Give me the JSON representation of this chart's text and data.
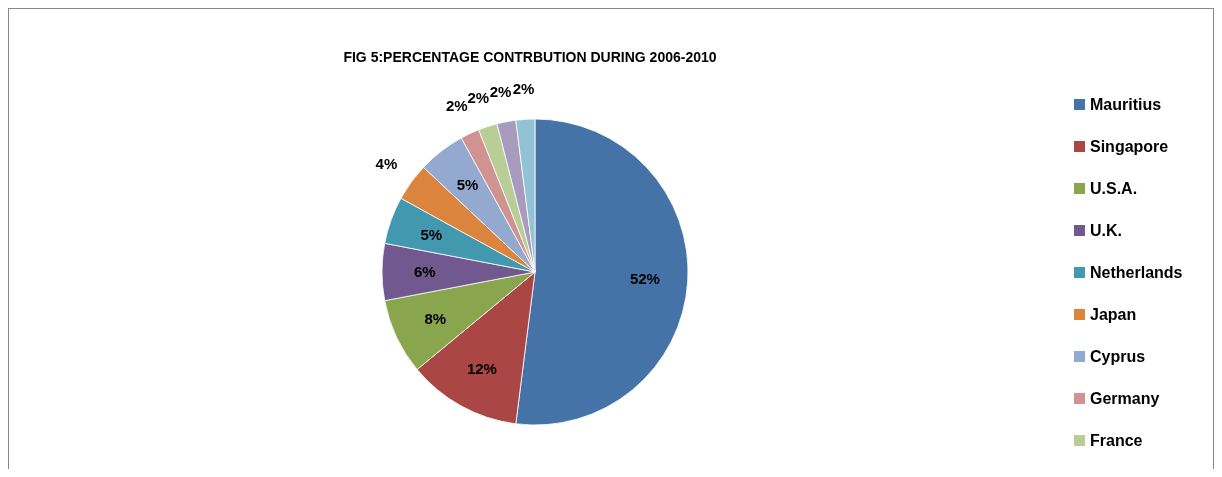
{
  "chart_data": {
    "type": "pie",
    "title": "FIG 5:PERCENTAGE CONTRBUTION DURING 2006-2010",
    "categories": [
      "Mauritius",
      "Singapore",
      "U.S.A.",
      "U.K.",
      "Netherlands",
      "Japan",
      "Cyprus",
      "Germany",
      "France",
      null,
      null
    ],
    "values": [
      52,
      12,
      8,
      6,
      5,
      4,
      5,
      2,
      2,
      2,
      2
    ],
    "colors": [
      "#4572a7",
      "#aa4643",
      "#89a54e",
      "#71588f",
      "#4198af",
      "#db843d",
      "#93a9cf",
      "#d19392",
      "#b9cd96",
      "#a99bbd",
      "#92c3d5"
    ],
    "value_labels": [
      "52%",
      "12%",
      "8%",
      "6%",
      "5%",
      "4%",
      "5%",
      "2%",
      "2%",
      "2%",
      "2%"
    ],
    "legend": "right"
  }
}
